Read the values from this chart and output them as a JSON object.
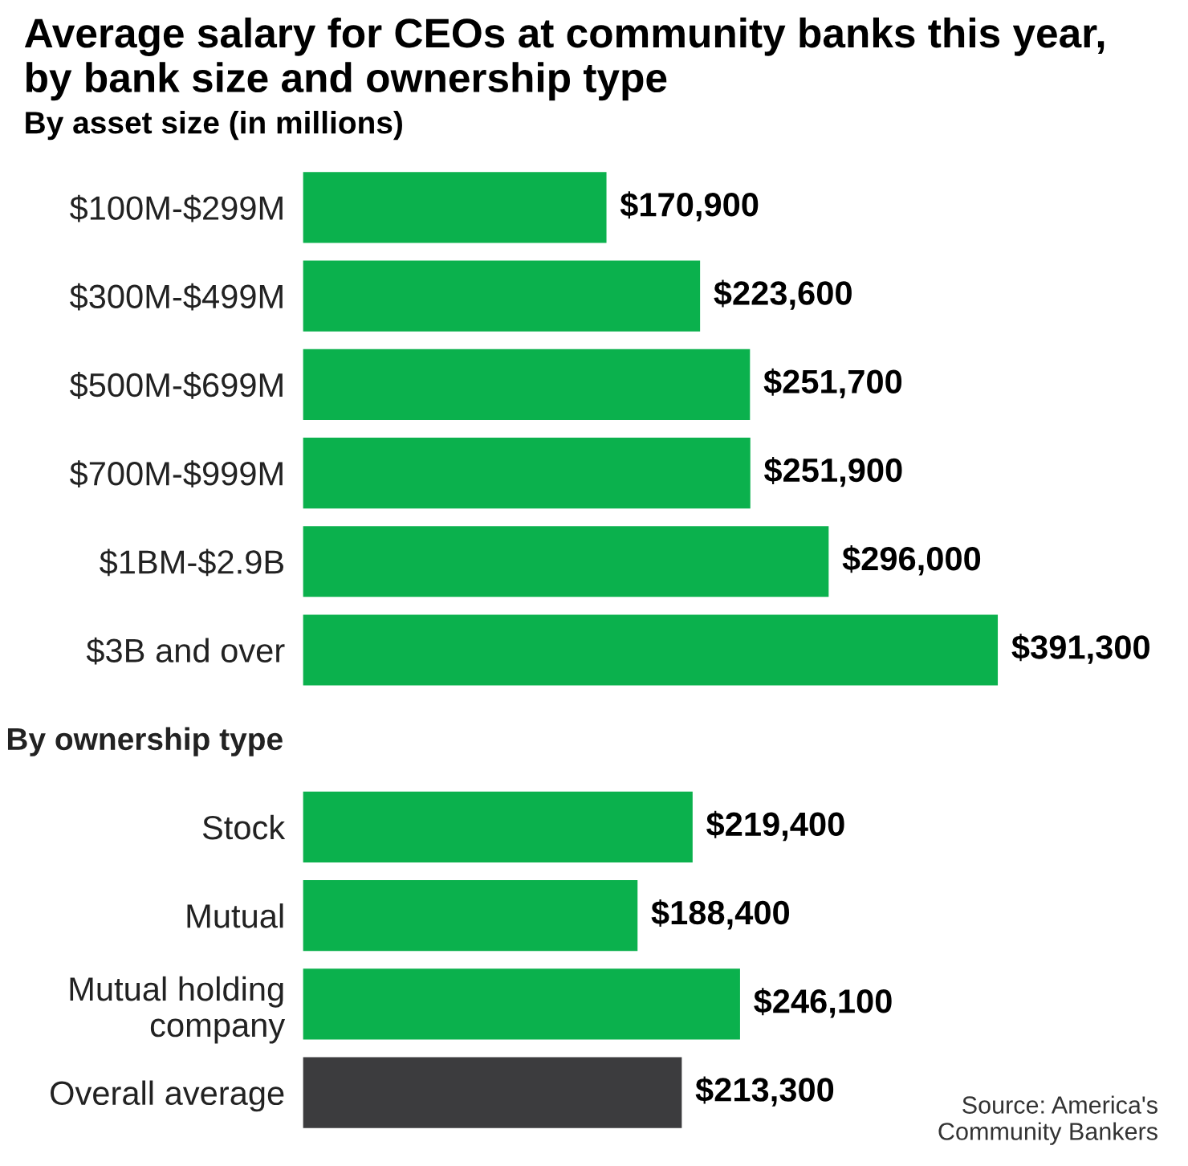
{
  "chart_data": {
    "type": "bar",
    "orientation": "horizontal",
    "title": "Average salary for CEOs at community banks this year,\nby bank size and ownership type",
    "subtitle": "By asset size (in millions)",
    "categories": [
      "$100M-$299M",
      "$300M-$499M",
      "$500M-$699M",
      "$700M-$999M",
      "$1BM-$2.9B",
      "$3B and over",
      "By ownership type",
      "Stock",
      "Mutual",
      "Mutual holding\ncompany",
      "Overall average"
    ],
    "values": [
      170900,
      223600,
      251700,
      251900,
      296000,
      391300,
      null,
      219400,
      188400,
      246100,
      213300
    ],
    "colors": [
      "#0bb14d",
      "#0bb14d",
      "#0bb14d",
      "#0bb14d",
      "#0bb14d",
      "#0bb14d",
      null,
      "#0bb14d",
      "#0bb14d",
      "#0bb14d",
      "#3c3c3e"
    ],
    "value_labels": [
      "$170,900",
      "$223,600",
      "$251,700",
      "$251,900",
      "$296,000",
      "$391,300",
      null,
      "$219,400",
      "$188,400",
      "$246,100",
      "$213,300"
    ],
    "annotations": [
      "Source: America's\nCommunity Bankers"
    ],
    "grid": false,
    "legend": false
  }
}
